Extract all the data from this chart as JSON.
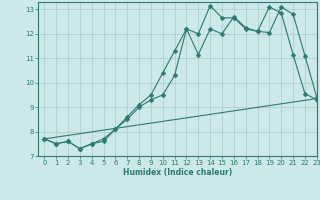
{
  "xlabel": "Humidex (Indice chaleur)",
  "bg_color": "#cce8e8",
  "grid_color": "#aacccc",
  "line_color": "#2d7a6e",
  "xlim": [
    -0.5,
    23
  ],
  "ylim": [
    7,
    13.3
  ],
  "xticks": [
    0,
    1,
    2,
    3,
    4,
    5,
    6,
    7,
    8,
    9,
    10,
    11,
    12,
    13,
    14,
    15,
    16,
    17,
    18,
    19,
    20,
    21,
    22,
    23
  ],
  "yticks": [
    7,
    8,
    9,
    10,
    11,
    12,
    13
  ],
  "series": [
    {
      "x": [
        0,
        1,
        2,
        3,
        4,
        5,
        6,
        7,
        8,
        9,
        10,
        11,
        12,
        13,
        14,
        15,
        16,
        17,
        18,
        19,
        20,
        21,
        22,
        23
      ],
      "y": [
        7.7,
        7.5,
        7.6,
        7.3,
        7.5,
        7.7,
        8.1,
        8.6,
        9.1,
        9.5,
        10.4,
        11.3,
        12.2,
        12.0,
        13.15,
        12.65,
        12.65,
        12.2,
        12.1,
        13.1,
        12.85,
        11.15,
        9.55,
        9.3
      ],
      "marker": true
    },
    {
      "x": [
        0,
        1,
        2,
        3,
        4,
        5,
        6,
        7,
        8,
        9,
        10,
        11,
        12,
        13,
        14,
        15,
        16,
        17,
        18,
        19,
        20,
        21,
        22,
        23
      ],
      "y": [
        7.7,
        7.5,
        7.6,
        7.3,
        7.5,
        7.6,
        8.1,
        8.5,
        9.0,
        9.3,
        9.5,
        10.3,
        12.2,
        11.15,
        12.2,
        12.0,
        12.7,
        12.25,
        12.1,
        12.05,
        13.1,
        12.8,
        11.1,
        9.4
      ],
      "marker": true
    },
    {
      "x": [
        0,
        23
      ],
      "y": [
        7.7,
        9.35
      ],
      "marker": false
    }
  ]
}
